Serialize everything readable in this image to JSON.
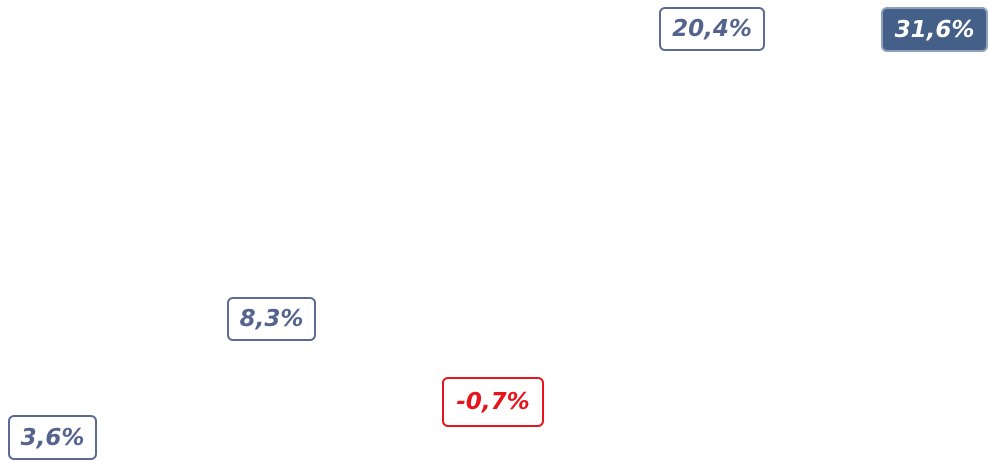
{
  "labels": [
    "3,6%",
    "8,3%",
    "-0,7%",
    "20,4%",
    "31,6%"
  ]
}
